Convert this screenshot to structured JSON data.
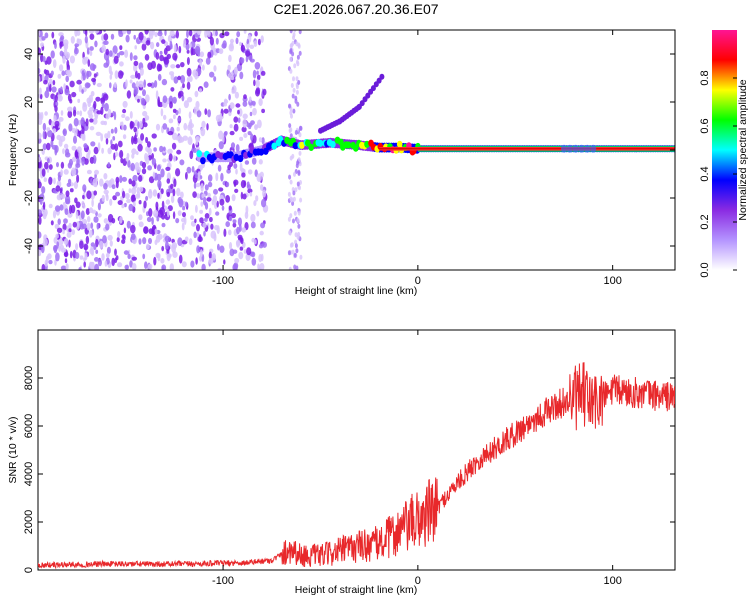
{
  "title": "C2E1.2026.067.20.36.E07",
  "chart_data": [
    {
      "type": "heatmap",
      "name": "spectrogram",
      "xlabel": "Height of straight line (km)",
      "ylabel": "Frequency (Hz)",
      "xlim": [
        -195,
        132
      ],
      "ylim": [
        -50,
        50
      ],
      "xticks": [
        -100,
        0,
        100
      ],
      "yticks": [
        -40,
        -20,
        0,
        20,
        40
      ],
      "colorbar": {
        "label": "Normalized spectral amplitude",
        "range": [
          0,
          1
        ],
        "ticks": [
          0.0,
          0.2,
          0.4,
          0.6,
          0.8
        ],
        "tick_labels": [
          "0.0",
          "0.2",
          "0.4",
          "0.6",
          "0.8"
        ],
        "colormap": [
          "#ffffff",
          "#b494ff",
          "#8a2be2",
          "#0000ff",
          "#00ffff",
          "#00ff00",
          "#ffff00",
          "#ff0000",
          "#ff1493"
        ]
      },
      "noise_region": {
        "x_from": -195,
        "x_to": -78,
        "extra_band_x": [
          -66,
          -60
        ],
        "amplitude": 0.2
      },
      "tone_track": [
        {
          "x": -112,
          "y": -3,
          "amp": 0.35
        },
        {
          "x": -95,
          "y": -3,
          "amp": 0.3
        },
        {
          "x": -80,
          "y": 0,
          "amp": 0.35
        },
        {
          "x": -70,
          "y": 4,
          "amp": 0.5
        },
        {
          "x": -60,
          "y": 2,
          "amp": 0.55
        },
        {
          "x": -45,
          "y": 3,
          "amp": 0.5
        },
        {
          "x": -30,
          "y": 2,
          "amp": 0.6
        },
        {
          "x": -20,
          "y": 1,
          "amp": 0.75
        },
        {
          "x": -10,
          "y": 1,
          "amp": 0.75
        },
        {
          "x": 0,
          "y": 0.5,
          "amp": 0.9
        },
        {
          "x": 50,
          "y": 0.5,
          "amp": 0.95
        },
        {
          "x": 100,
          "y": 0.5,
          "amp": 0.95
        },
        {
          "x": 130,
          "y": 0.5,
          "amp": 0.95
        }
      ],
      "branch_track": [
        {
          "x": -50,
          "y": 8
        },
        {
          "x": -40,
          "y": 12
        },
        {
          "x": -30,
          "y": 18
        },
        {
          "x": -18,
          "y": 31
        }
      ]
    },
    {
      "type": "line",
      "name": "snr",
      "xlabel": "Height of straight line (km)",
      "ylabel": "SNR (10 * v/v)",
      "xlim": [
        -195,
        132
      ],
      "ylim": [
        0,
        10000
      ],
      "xticks": [
        -100,
        0,
        100
      ],
      "yticks": [
        0,
        2000,
        4000,
        6000,
        8000
      ],
      "color": "#e8282b",
      "series": [
        {
          "name": "SNR",
          "x": [
            -195,
            -160,
            -120,
            -90,
            -75,
            -65,
            -60,
            -50,
            -40,
            -30,
            -20,
            -10,
            0,
            10,
            20,
            30,
            40,
            50,
            60,
            70,
            75,
            80,
            85,
            90,
            95,
            100,
            110,
            120,
            132
          ],
          "values": [
            200,
            250,
            250,
            300,
            400,
            900,
            600,
            600,
            800,
            1000,
            1100,
            1600,
            2100,
            2600,
            3600,
            4500,
            5100,
            5700,
            6300,
            6800,
            7000,
            7100,
            7300,
            6900,
            7200,
            7500,
            7400,
            7300,
            7200
          ]
        }
      ]
    }
  ]
}
